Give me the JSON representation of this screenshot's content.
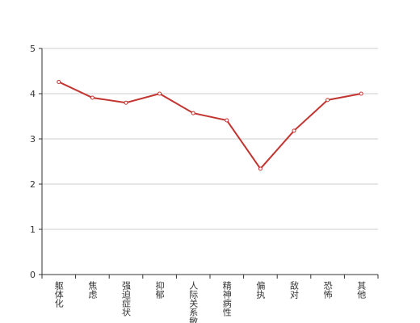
{
  "chart_data": {
    "type": "line",
    "categories": [
      "躯体化",
      "焦虑",
      "强迫症状",
      "抑郁",
      "人际关系敏感",
      "精神病性",
      "偏执",
      "敌对",
      "恐怖",
      "其他"
    ],
    "values": [
      4.26,
      3.91,
      3.8,
      4.0,
      3.57,
      3.41,
      2.34,
      3.18,
      3.86,
      4.0
    ],
    "color": "#c23531",
    "ylim": [
      0,
      5
    ],
    "yticks": [
      0,
      1,
      2,
      3,
      4,
      5
    ],
    "grid": true
  }
}
